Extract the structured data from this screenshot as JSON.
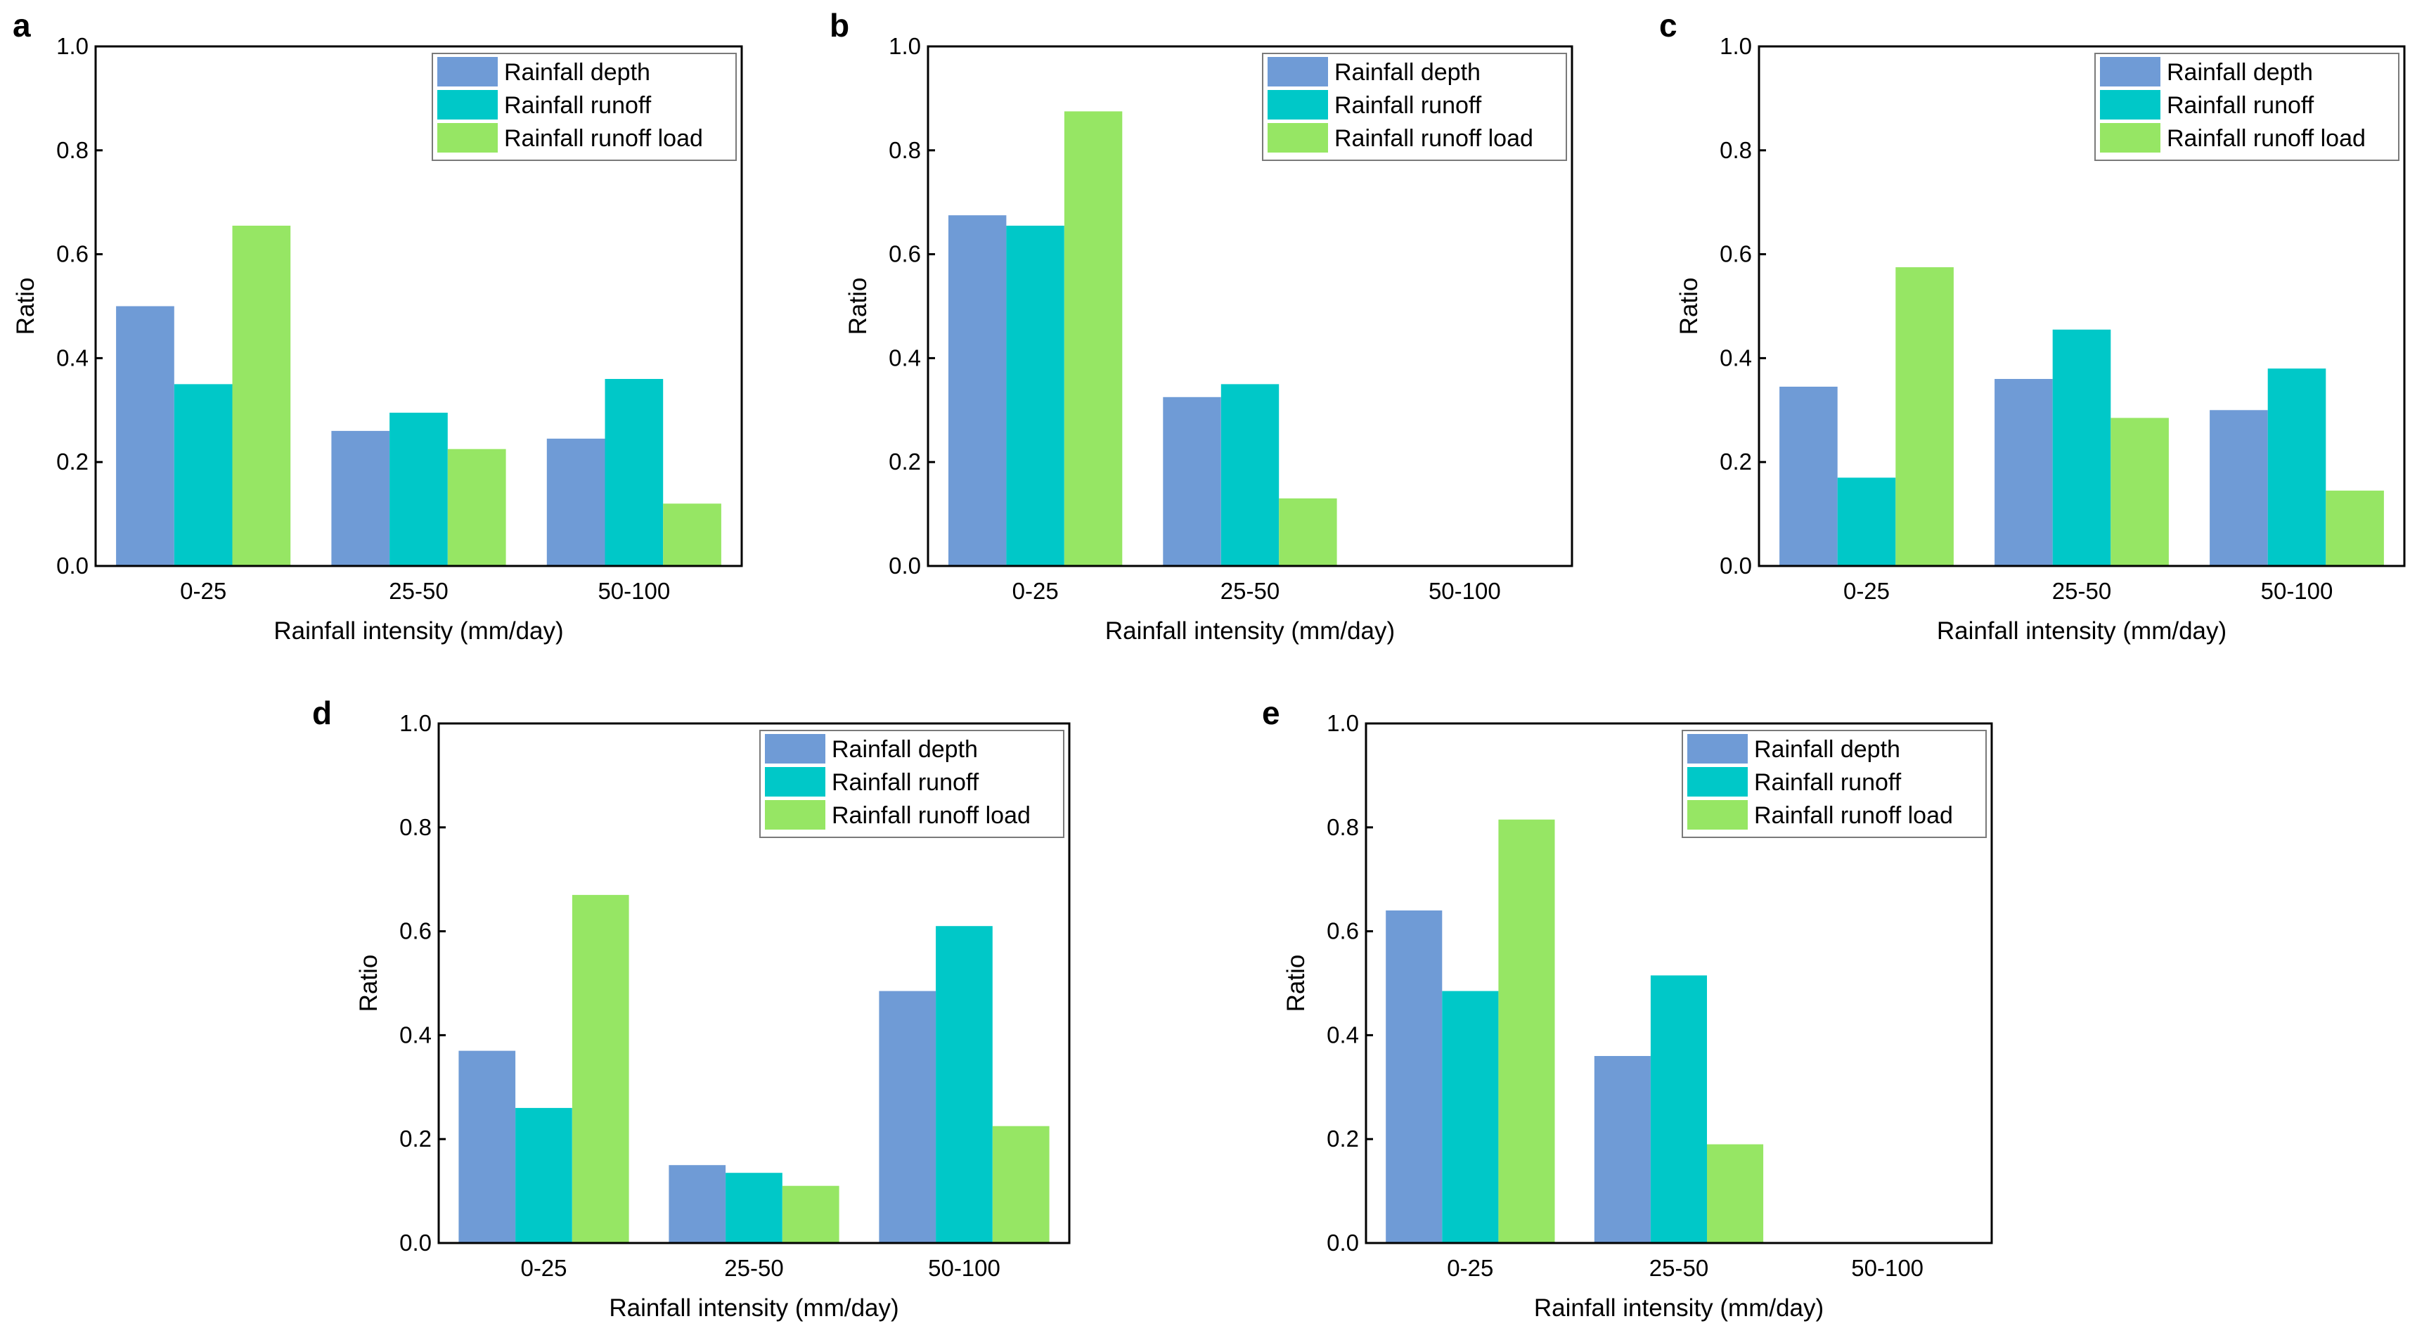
{
  "chart_data": [
    {
      "panel": "a",
      "type": "bar",
      "categories": [
        "0-25",
        "25-50",
        "50-100"
      ],
      "series": [
        {
          "name": "Rainfall depth",
          "values": [
            0.5,
            0.26,
            0.245
          ]
        },
        {
          "name": "Rainfall runoff",
          "values": [
            0.35,
            0.295,
            0.36
          ]
        },
        {
          "name": "Rainfall runoff load",
          "values": [
            0.655,
            0.225,
            0.12
          ]
        }
      ],
      "xlabel": "Rainfall intensity (mm/day)",
      "ylabel": "Ratio",
      "ylim": [
        0,
        1.0
      ],
      "yticks": [
        "0.0",
        "0.2",
        "0.4",
        "0.6",
        "0.8",
        "1.0"
      ],
      "legend": "top-right"
    },
    {
      "panel": "b",
      "type": "bar",
      "categories": [
        "0-25",
        "25-50",
        "50-100"
      ],
      "series": [
        {
          "name": "Rainfall depth",
          "values": [
            0.675,
            0.325,
            0
          ]
        },
        {
          "name": "Rainfall runoff",
          "values": [
            0.655,
            0.35,
            0
          ]
        },
        {
          "name": "Rainfall runoff load",
          "values": [
            0.875,
            0.13,
            0
          ]
        }
      ],
      "xlabel": "Rainfall intensity (mm/day)",
      "ylabel": "Ratio",
      "ylim": [
        0,
        1.0
      ],
      "yticks": [
        "0.0",
        "0.2",
        "0.4",
        "0.6",
        "0.8",
        "1.0"
      ],
      "legend": "top-right"
    },
    {
      "panel": "c",
      "type": "bar",
      "categories": [
        "0-25",
        "25-50",
        "50-100"
      ],
      "series": [
        {
          "name": "Rainfall depth",
          "values": [
            0.345,
            0.36,
            0.3
          ]
        },
        {
          "name": "Rainfall runoff",
          "values": [
            0.17,
            0.455,
            0.38
          ]
        },
        {
          "name": "Rainfall runoff load",
          "values": [
            0.575,
            0.285,
            0.145
          ]
        }
      ],
      "xlabel": "Rainfall intensity (mm/day)",
      "ylabel": "Ratio",
      "ylim": [
        0,
        1.0
      ],
      "yticks": [
        "0.0",
        "0.2",
        "0.4",
        "0.6",
        "0.8",
        "1.0"
      ],
      "legend": "top-right"
    },
    {
      "panel": "d",
      "type": "bar",
      "categories": [
        "0-25",
        "25-50",
        "50-100"
      ],
      "series": [
        {
          "name": "Rainfall depth",
          "values": [
            0.37,
            0.15,
            0.485
          ]
        },
        {
          "name": "Rainfall runoff",
          "values": [
            0.26,
            0.135,
            0.61
          ]
        },
        {
          "name": "Rainfall runoff load",
          "values": [
            0.67,
            0.11,
            0.225
          ]
        }
      ],
      "xlabel": "Rainfall intensity (mm/day)",
      "ylabel": "Ratio",
      "ylim": [
        0,
        1.0
      ],
      "yticks": [
        "0.0",
        "0.2",
        "0.4",
        "0.6",
        "0.8",
        "1.0"
      ],
      "legend": "top-right"
    },
    {
      "panel": "e",
      "type": "bar",
      "categories": [
        "0-25",
        "25-50",
        "50-100"
      ],
      "series": [
        {
          "name": "Rainfall depth",
          "values": [
            0.64,
            0.36,
            0
          ]
        },
        {
          "name": "Rainfall runoff",
          "values": [
            0.485,
            0.515,
            0
          ]
        },
        {
          "name": "Rainfall runoff load",
          "values": [
            0.815,
            0.19,
            0
          ]
        }
      ],
      "xlabel": "Rainfall intensity (mm/day)",
      "ylabel": "Ratio",
      "ylim": [
        0,
        1.0
      ],
      "yticks": [
        "0.0",
        "0.2",
        "0.4",
        "0.6",
        "0.8",
        "1.0"
      ],
      "legend": "top-right"
    }
  ],
  "colors": {
    "rainfall_depth": "#6f9bd6",
    "rainfall_runoff": "#00c8c8",
    "rainfall_runoff_load": "#96e664",
    "axis": "#000000"
  }
}
